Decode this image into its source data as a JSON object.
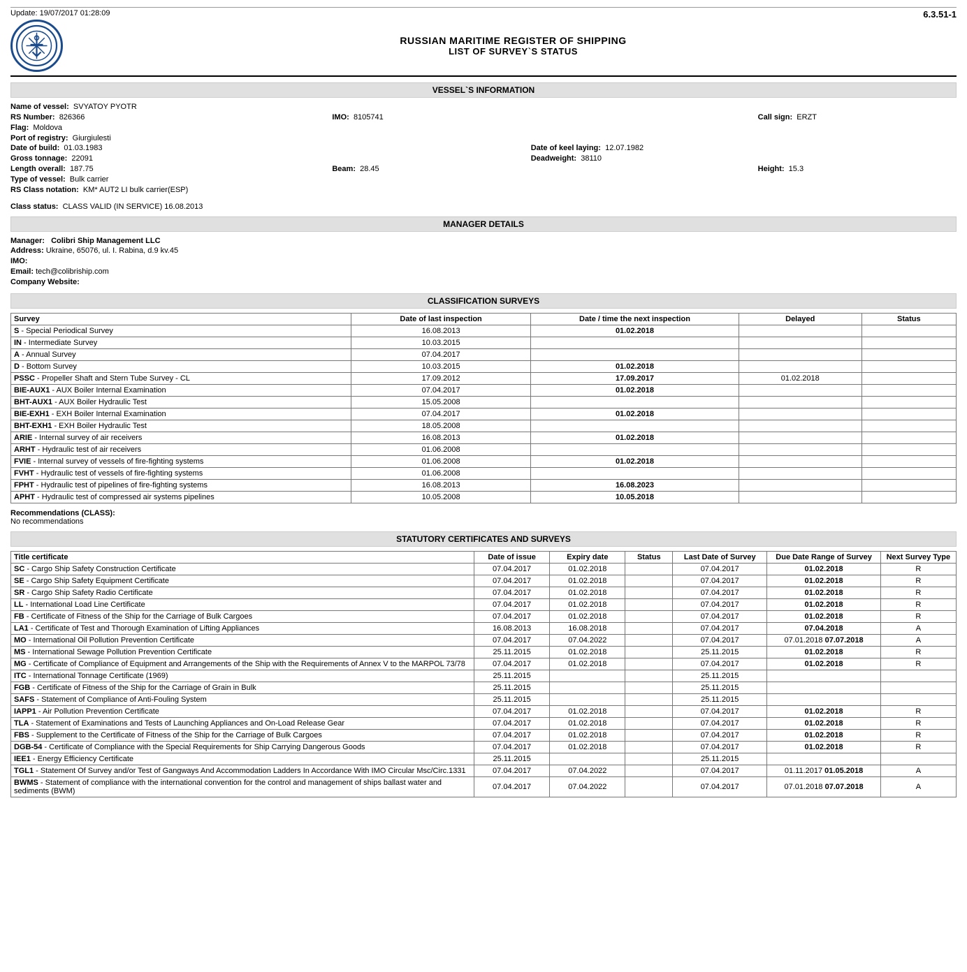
{
  "update": "Update: 19/07/2017 01:28:09",
  "doc_code": "6.3.51-1",
  "titles": {
    "main": "RUSSIAN MARITIME REGISTER OF SHIPPING",
    "sub": "LIST OF SURVEY`S STATUS"
  },
  "sections": {
    "vessel": "VESSEL`S INFORMATION",
    "manager": "MANAGER DETAILS",
    "class_surveys": "CLASSIFICATION SURVEYS",
    "stat_certs": "STATUTORY CERTIFICATES AND SURVEYS"
  },
  "vessel": {
    "name_lbl": "Name of vessel:",
    "name": "SVYATOY PYOTR",
    "rs_lbl": "RS Number:",
    "rs": "826366",
    "imo_lbl": "IMO:",
    "imo": "8105741",
    "call_lbl": "Call sign:",
    "call": "ERZT",
    "flag_lbl": "Flag:",
    "flag": "Moldova",
    "port_lbl": "Port of registry:",
    "port": "Giurgiulesti",
    "dob_lbl": "Date of build:",
    "dob": "01.03.1983",
    "keel_lbl": "Date of keel laying:",
    "keel": "12.07.1982",
    "gt_lbl": "Gross tonnage:",
    "gt": "22091",
    "dw_lbl": "Deadweight:",
    "dw": "38110",
    "loa_lbl": "Length overall:",
    "loa": "187.75",
    "beam_lbl": "Beam:",
    "beam": "28.45",
    "height_lbl": "Height:",
    "height": "15.3",
    "type_lbl": "Type of vessel:",
    "type": "Bulk carrier",
    "notation_lbl": "RS Class notation:",
    "notation": "KM* AUT2 LI bulk carrier(ESP)",
    "class_status_lbl": "Class status:",
    "class_status": "CLASS VALID (IN SERVICE)  16.08.2013"
  },
  "manager": {
    "mgr_lbl": "Manager:",
    "mgr": "Colibri Ship Management LLC",
    "addr_lbl": "Address:",
    "addr": "Ukraine, 65076, ul. I. Rabina, d.9 kv.45",
    "imo_lbl": "IMO:",
    "imo": "",
    "email_lbl": "Email:",
    "email": "tech@colibriship.com",
    "web_lbl": "Company Website:",
    "web": ""
  },
  "class_table": {
    "headers": [
      "Survey",
      "Date of last inspection",
      "Date / time the next inspection",
      "Delayed",
      "Status"
    ],
    "rows": [
      {
        "code": "S",
        "name": " - Special Periodical Survey",
        "last": "16.08.2013",
        "next": "01.02.2018",
        "del": "",
        "st": ""
      },
      {
        "code": "IN",
        "name": " - Intermediate Survey",
        "last": "10.03.2015",
        "next": "",
        "del": "",
        "st": ""
      },
      {
        "code": "A",
        "name": " - Annual Survey",
        "last": "07.04.2017",
        "next": "",
        "del": "",
        "st": ""
      },
      {
        "code": "D",
        "name": " - Bottom Survey",
        "last": "10.03.2015",
        "next": "01.02.2018",
        "del": "",
        "st": ""
      },
      {
        "code": "PSSC",
        "name": " - Propeller Shaft and Stern Tube Survey - CL",
        "last": "17.09.2012",
        "next": "17.09.2017",
        "del": "01.02.2018",
        "st": ""
      },
      {
        "code": "BIE-AUX1",
        "name": " - AUX Boiler Internal Examination",
        "last": "07.04.2017",
        "next": "01.02.2018",
        "del": "",
        "st": ""
      },
      {
        "code": "BHT-AUX1",
        "name": " - AUX Boiler Hydraulic Test",
        "last": "15.05.2008",
        "next": "",
        "del": "",
        "st": ""
      },
      {
        "code": "BIE-EXH1",
        "name": " - EXH Boiler Internal Examination",
        "last": "07.04.2017",
        "next": "01.02.2018",
        "del": "",
        "st": ""
      },
      {
        "code": "BHT-EXH1",
        "name": " - EXH Boiler Hydraulic Test",
        "last": "18.05.2008",
        "next": "",
        "del": "",
        "st": ""
      },
      {
        "code": "ARIE",
        "name": " - Internal survey of air receivers",
        "last": "16.08.2013",
        "next": "01.02.2018",
        "del": "",
        "st": ""
      },
      {
        "code": "ARHT",
        "name": " - Hydraulic test of air receivers",
        "last": "01.06.2008",
        "next": "",
        "del": "",
        "st": ""
      },
      {
        "code": "FVIE",
        "name": " - Internal survey of vessels of fire-fighting systems",
        "last": "01.06.2008",
        "next": "01.02.2018",
        "del": "",
        "st": ""
      },
      {
        "code": "FVHT",
        "name": " - Hydraulic test of vessels of fire-fighting systems",
        "last": "01.06.2008",
        "next": "",
        "del": "",
        "st": ""
      },
      {
        "code": "FPHT",
        "name": " - Hydraulic test of pipelines of fire-fighting systems",
        "last": "16.08.2013",
        "next": "16.08.2023",
        "del": "",
        "st": ""
      },
      {
        "code": "APHT",
        "name": " - Hydraulic test of compressed air systems pipelines",
        "last": "10.05.2008",
        "next": "10.05.2018",
        "del": "",
        "st": ""
      }
    ]
  },
  "recs": {
    "title": "Recommendations (CLASS):",
    "text": "No recommendations"
  },
  "stat_table": {
    "headers": [
      "Title certificate",
      "Date of issue",
      "Expiry date",
      "Status",
      "Last Date of Survey",
      "Due Date Range of Survey",
      "Next Survey Type"
    ],
    "rows": [
      {
        "code": "SC",
        "name": " - Cargo Ship Safety Construction Certificate",
        "issue": "07.04.2017",
        "exp": "01.02.2018",
        "st": "",
        "last": "07.04.2017",
        "due": "01.02.2018",
        "next": "R"
      },
      {
        "code": "SE",
        "name": " - Cargo Ship Safety Equipment Certificate",
        "issue": "07.04.2017",
        "exp": "01.02.2018",
        "st": "",
        "last": "07.04.2017",
        "due": "01.02.2018",
        "next": "R"
      },
      {
        "code": "SR",
        "name": " - Cargo Ship Safety Radio Certificate",
        "issue": "07.04.2017",
        "exp": "01.02.2018",
        "st": "",
        "last": "07.04.2017",
        "due": "01.02.2018",
        "next": "R"
      },
      {
        "code": "LL",
        "name": " - International Load Line Certificate",
        "issue": "07.04.2017",
        "exp": "01.02.2018",
        "st": "",
        "last": "07.04.2017",
        "due": "01.02.2018",
        "next": "R"
      },
      {
        "code": "FB",
        "name": " - Certificate of Fitness of the Ship for the Carriage of Bulk Cargoes",
        "issue": "07.04.2017",
        "exp": "01.02.2018",
        "st": "",
        "last": "07.04.2017",
        "due": "01.02.2018",
        "next": "R"
      },
      {
        "code": "LA1",
        "name": " - Certificate of Test and Thorough Examination of Lifting Appliances",
        "issue": "16.08.2013",
        "exp": "16.08.2018",
        "st": "",
        "last": "07.04.2017",
        "due": "07.04.2018",
        "next": "A"
      },
      {
        "code": "MO",
        "name": " - International Oil Pollution Prevention Certificate",
        "issue": "07.04.2017",
        "exp": "07.04.2022",
        "st": "",
        "last": "07.04.2017",
        "due": "07.01.2018 07.07.2018",
        "next": "A"
      },
      {
        "code": "MS",
        "name": " - International Sewage Pollution Prevention Certificate",
        "issue": "25.11.2015",
        "exp": "01.02.2018",
        "st": "",
        "last": "25.11.2015",
        "due": "01.02.2018",
        "next": "R"
      },
      {
        "code": "MG",
        "name": " - Certificate of Compliance of Equipment and Arrangements of the Ship with the Requirements of Annex V to the MARPOL 73/78",
        "issue": "07.04.2017",
        "exp": "01.02.2018",
        "st": "",
        "last": "07.04.2017",
        "due": "01.02.2018",
        "next": "R"
      },
      {
        "code": "ITC",
        "name": " - International Tonnage Certificate (1969)",
        "issue": "25.11.2015",
        "exp": "",
        "st": "",
        "last": "25.11.2015",
        "due": "",
        "next": ""
      },
      {
        "code": "FGB",
        "name": " - Certificate of Fitness of the Ship for the Carriage of Grain in Bulk",
        "issue": "25.11.2015",
        "exp": "",
        "st": "",
        "last": "25.11.2015",
        "due": "",
        "next": ""
      },
      {
        "code": "SAFS",
        "name": " - Statement of Compliance of Anti-Fouling System",
        "issue": "25.11.2015",
        "exp": "",
        "st": "",
        "last": "25.11.2015",
        "due": "",
        "next": ""
      },
      {
        "code": "IAPP1",
        "name": " - Air Pollution Prevention Certificate",
        "issue": "07.04.2017",
        "exp": "01.02.2018",
        "st": "",
        "last": "07.04.2017",
        "due": "01.02.2018",
        "next": "R"
      },
      {
        "code": "TLA",
        "name": " - Statement of Examinations and Tests of Launching Appliances and On-Load Release Gear",
        "issue": "07.04.2017",
        "exp": "01.02.2018",
        "st": "",
        "last": "07.04.2017",
        "due": "01.02.2018",
        "next": "R"
      },
      {
        "code": "FBS",
        "name": " - Supplement to the Certificate of Fitness of the Ship for the Carriage of Bulk Cargoes",
        "issue": "07.04.2017",
        "exp": "01.02.2018",
        "st": "",
        "last": "07.04.2017",
        "due": "01.02.2018",
        "next": "R"
      },
      {
        "code": "DGB-54",
        "name": " - Certificate of Compliance with the Special Requirements for Ship Carrying Dangerous Goods",
        "issue": "07.04.2017",
        "exp": "01.02.2018",
        "st": "",
        "last": "07.04.2017",
        "due": "01.02.2018",
        "next": "R"
      },
      {
        "code": "IEE1",
        "name": " - Energy Efficiency Certificate",
        "issue": "25.11.2015",
        "exp": "",
        "st": "",
        "last": "25.11.2015",
        "due": "",
        "next": ""
      },
      {
        "code": "TGL1",
        "name": " - Statement Of Survey and/or Test of Gangways And Accommodation Ladders In Accordance With IMO Circular Msc/Circ.1331",
        "issue": "07.04.2017",
        "exp": "07.04.2022",
        "st": "",
        "last": "07.04.2017",
        "due": "01.11.2017 01.05.2018",
        "next": "A"
      },
      {
        "code": "BWMS",
        "name": " - Statement of compliance with the international convention for the control and management of ships ballast water and sediments (BWM)",
        "issue": "07.04.2017",
        "exp": "07.04.2022",
        "st": "",
        "last": "07.04.2017",
        "due": "07.01.2018 07.07.2018",
        "next": "A"
      }
    ]
  },
  "col_widths": {
    "class": [
      "36%",
      "19%",
      "22%",
      "13%",
      "10%"
    ],
    "stat": [
      "49%",
      "8%",
      "8%",
      "5%",
      "10%",
      "12%",
      "8%"
    ]
  }
}
